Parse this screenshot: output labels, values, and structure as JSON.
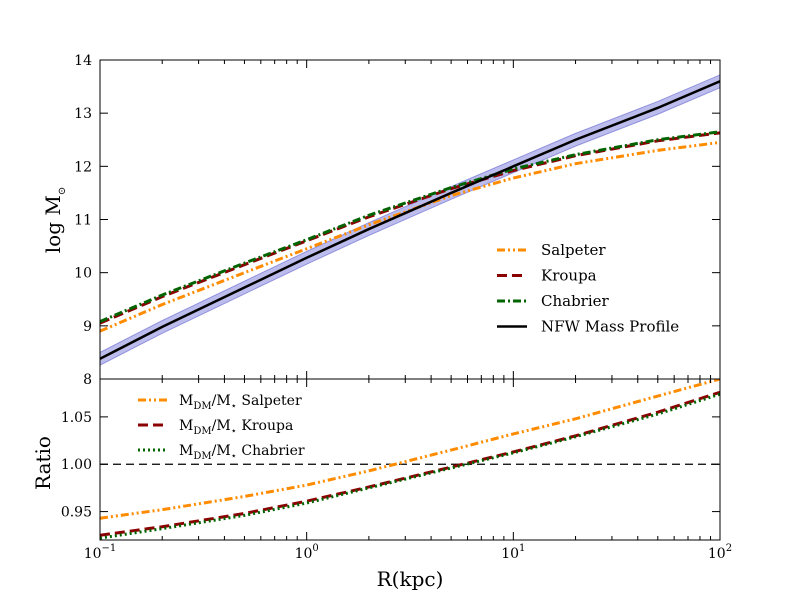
{
  "chart_data": [
    {
      "type": "line",
      "panel": "top",
      "ylabel": "log M",
      "ylabel_subscript": "⊙",
      "xscale": "log",
      "xlim": [
        0.1,
        100
      ],
      "ylim": [
        8,
        14
      ],
      "yticks": [
        "8",
        "9",
        "10",
        "11",
        "12",
        "13",
        "14"
      ],
      "legend_position": "lower-right",
      "series": [
        {
          "name": "Salpeter",
          "color": "#ff8c00",
          "style": "dash-dot-dot",
          "x": [
            0.1,
            0.2,
            0.5,
            1,
            2,
            5,
            10,
            20,
            50,
            100
          ],
          "y": [
            8.9,
            9.4,
            10.0,
            10.45,
            10.9,
            11.45,
            11.78,
            12.05,
            12.3,
            12.45
          ]
        },
        {
          "name": "Kroupa",
          "color": "#8b0000",
          "style": "dashed",
          "x": [
            0.1,
            0.2,
            0.5,
            1,
            2,
            5,
            10,
            20,
            50,
            100
          ],
          "y": [
            9.05,
            9.55,
            10.15,
            10.6,
            11.05,
            11.58,
            11.92,
            12.2,
            12.48,
            12.63
          ]
        },
        {
          "name": "Chabrier",
          "color": "#006400",
          "style": "dash-dot",
          "x": [
            0.1,
            0.2,
            0.5,
            1,
            2,
            5,
            10,
            20,
            50,
            100
          ],
          "y": [
            9.08,
            9.58,
            10.18,
            10.62,
            11.08,
            11.6,
            11.95,
            12.22,
            12.5,
            12.65
          ]
        },
        {
          "name": "NFW Mass Profile",
          "color": "#000000",
          "style": "solid",
          "x": [
            0.1,
            0.2,
            0.5,
            1,
            2,
            5,
            10,
            20,
            50,
            100
          ],
          "y": [
            8.38,
            8.98,
            9.72,
            10.28,
            10.82,
            11.5,
            12.0,
            12.5,
            13.1,
            13.6
          ],
          "band": 0.12,
          "band_color": "#7b7bdc"
        }
      ]
    },
    {
      "type": "line",
      "panel": "bottom",
      "ylabel": "Ratio",
      "xlabel": "R(kpc)",
      "xscale": "log",
      "xlim": [
        0.1,
        100
      ],
      "ylim": [
        0.92,
        1.09
      ],
      "yticks": [
        "0.95",
        "1.00",
        "1.05"
      ],
      "xticks": [
        {
          "base": "10",
          "exp": "−1"
        },
        {
          "base": "10",
          "exp": "0"
        },
        {
          "base": "10",
          "exp": "1"
        },
        {
          "base": "10",
          "exp": "2"
        }
      ],
      "reference_line": {
        "y": 1.0,
        "color": "#000000",
        "style": "dashed"
      },
      "legend_position": "upper-left",
      "legend_prefix": {
        "main": "M",
        "sub1": "DM",
        "slash": "/M",
        "sub2": "⋆"
      },
      "series": [
        {
          "name": "Salpeter",
          "color": "#ff8c00",
          "style": "dash-dot-dot",
          "x": [
            0.1,
            0.2,
            0.5,
            1,
            2,
            5,
            10,
            20,
            50,
            100
          ],
          "y": [
            0.943,
            0.952,
            0.966,
            0.978,
            0.993,
            1.015,
            1.032,
            1.048,
            1.072,
            1.09
          ]
        },
        {
          "name": "Kroupa",
          "color": "#8b0000",
          "style": "dashed",
          "x": [
            0.1,
            0.2,
            0.5,
            1,
            2,
            5,
            10,
            20,
            50,
            100
          ],
          "y": [
            0.925,
            0.934,
            0.948,
            0.961,
            0.976,
            0.997,
            1.013,
            1.03,
            1.055,
            1.076
          ]
        },
        {
          "name": "Chabrier",
          "color": "#006400",
          "style": "dotted",
          "x": [
            0.1,
            0.2,
            0.5,
            1,
            2,
            5,
            10,
            20,
            50,
            100
          ],
          "y": [
            0.922,
            0.932,
            0.946,
            0.959,
            0.975,
            0.996,
            1.012,
            1.029,
            1.053,
            1.074
          ]
        }
      ]
    }
  ]
}
